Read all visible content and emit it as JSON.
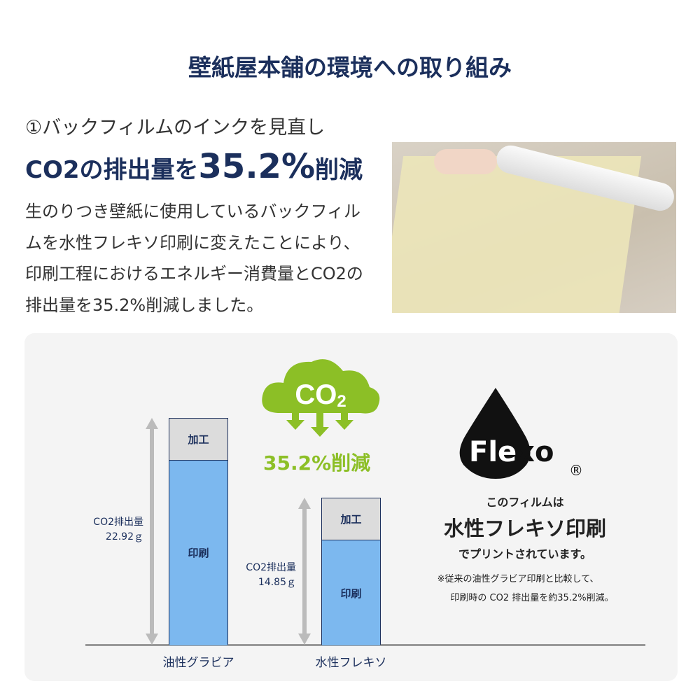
{
  "header": {
    "title": "壁紙屋本舗の環境への取り組み"
  },
  "intro": {
    "subtitle": "①バックフィルムのインクを見直し",
    "headline_pre": "CO2の排出量を",
    "headline_value": "35.2%",
    "headline_post": "削減",
    "body": "生のりつき壁紙に使用しているバックフィルムを水性フレキソ印刷に変えたことにより、印刷工程におけるエネルギー消費量とCO2の排出量を35.2%削減しました。"
  },
  "co2_badge": {
    "cloud_text": "CO2",
    "reduction": "35.2%削減",
    "color": "#8cbf26"
  },
  "flexo": {
    "logo": "Flexo",
    "registered": "®",
    "line1": "このフィルムは",
    "line2": "水性フレキソ印刷",
    "line3": "でプリントされています。",
    "note1": "※従来の油性グラビア印刷と比較して、",
    "note2": "印刷時の CO2 排出量を約35.2%削減。"
  },
  "chart_data": {
    "type": "bar",
    "stacked": true,
    "categories": [
      "油性グラビア",
      "水性フレキソ"
    ],
    "series": [
      {
        "name": "印刷",
        "values": [
          18.7,
          10.6
        ],
        "color": "#7cb8ef"
      },
      {
        "name": "加工",
        "values": [
          4.22,
          4.25
        ],
        "color": "#dcdcdc"
      }
    ],
    "totals": [
      22.92,
      14.85
    ],
    "total_labels": [
      [
        "CO2排出量",
        "22.92ｇ"
      ],
      [
        "CO2排出量",
        "14.85ｇ"
      ]
    ],
    "unit": "g",
    "grid": false
  }
}
